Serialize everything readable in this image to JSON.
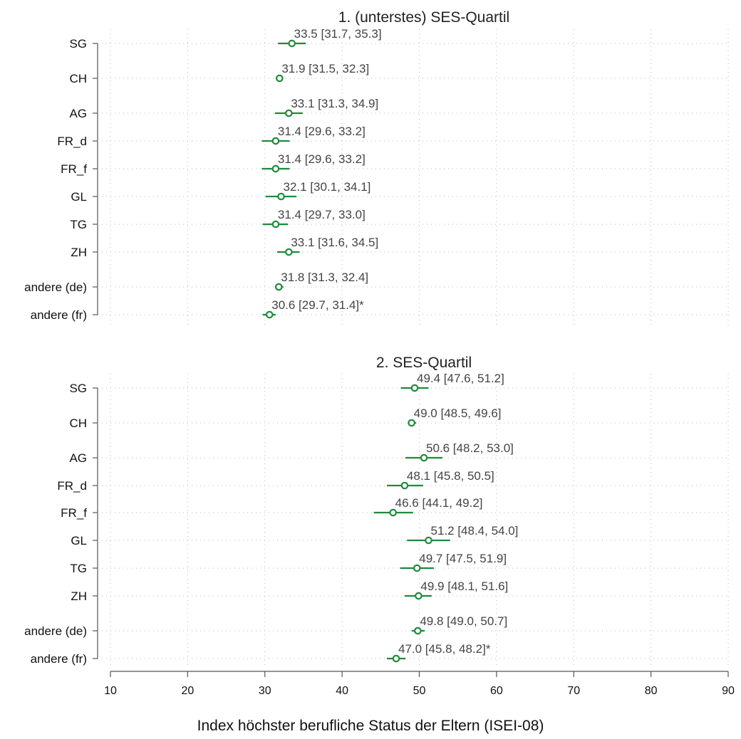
{
  "chart_data": {
    "type": "scatter",
    "subtype": "forest-plot",
    "xlabel": "Index höchster berufliche Status der Eltern (ISEI-08)",
    "xlim": [
      10,
      90
    ],
    "xticks": [
      10,
      20,
      30,
      40,
      50,
      60,
      70,
      80,
      90
    ],
    "grid": true,
    "marker_color": "#1e8a3c",
    "panels": [
      {
        "title": "1. (unterstes) SES-Quartil",
        "rows": [
          {
            "label": "SG",
            "value": 33.5,
            "ci": [
              31.7,
              35.3
            ],
            "text": "33.5 [31.7, 35.3]"
          },
          {
            "label": "CH",
            "value": 31.9,
            "ci": [
              31.5,
              32.3
            ],
            "text": "31.9 [31.5, 32.3]"
          },
          {
            "label": "AG",
            "value": 33.1,
            "ci": [
              31.3,
              34.9
            ],
            "text": "33.1 [31.3, 34.9]"
          },
          {
            "label": "FR_d",
            "value": 31.4,
            "ci": [
              29.6,
              33.2
            ],
            "text": "31.4 [29.6, 33.2]"
          },
          {
            "label": "FR_f",
            "value": 31.4,
            "ci": [
              29.6,
              33.2
            ],
            "text": "31.4 [29.6, 33.2]"
          },
          {
            "label": "GL",
            "value": 32.1,
            "ci": [
              30.1,
              34.1
            ],
            "text": "32.1 [30.1, 34.1]"
          },
          {
            "label": "TG",
            "value": 31.4,
            "ci": [
              29.7,
              33.0
            ],
            "text": "31.4 [29.7, 33.0]"
          },
          {
            "label": "ZH",
            "value": 33.1,
            "ci": [
              31.6,
              34.5
            ],
            "text": "33.1 [31.6, 34.5]"
          },
          {
            "label": "andere (de)",
            "value": 31.8,
            "ci": [
              31.3,
              32.4
            ],
            "text": "31.8 [31.3, 32.4]"
          },
          {
            "label": "andere (fr)",
            "value": 30.6,
            "ci": [
              29.7,
              31.4
            ],
            "text": "30.6 [29.7, 31.4]*"
          }
        ]
      },
      {
        "title": "2. SES-Quartil",
        "rows": [
          {
            "label": "SG",
            "value": 49.4,
            "ci": [
              47.6,
              51.2
            ],
            "text": "49.4 [47.6, 51.2]"
          },
          {
            "label": "CH",
            "value": 49.0,
            "ci": [
              48.5,
              49.6
            ],
            "text": "49.0 [48.5, 49.6]"
          },
          {
            "label": "AG",
            "value": 50.6,
            "ci": [
              48.2,
              53.0
            ],
            "text": "50.6 [48.2, 53.0]"
          },
          {
            "label": "FR_d",
            "value": 48.1,
            "ci": [
              45.8,
              50.5
            ],
            "text": "48.1 [45.8, 50.5]"
          },
          {
            "label": "FR_f",
            "value": 46.6,
            "ci": [
              44.1,
              49.2
            ],
            "text": "46.6 [44.1, 49.2]"
          },
          {
            "label": "GL",
            "value": 51.2,
            "ci": [
              48.4,
              54.0
            ],
            "text": "51.2 [48.4, 54.0]"
          },
          {
            "label": "TG",
            "value": 49.7,
            "ci": [
              47.5,
              51.9
            ],
            "text": "49.7 [47.5, 51.9]"
          },
          {
            "label": "ZH",
            "value": 49.9,
            "ci": [
              48.1,
              51.6
            ],
            "text": "49.9 [48.1, 51.6]"
          },
          {
            "label": "andere (de)",
            "value": 49.8,
            "ci": [
              49.0,
              50.7
            ],
            "text": "49.8 [49.0, 50.7]"
          },
          {
            "label": "andere (fr)",
            "value": 47.0,
            "ci": [
              45.8,
              48.2
            ],
            "text": "47.0 [45.8, 48.2]*"
          }
        ]
      }
    ]
  }
}
